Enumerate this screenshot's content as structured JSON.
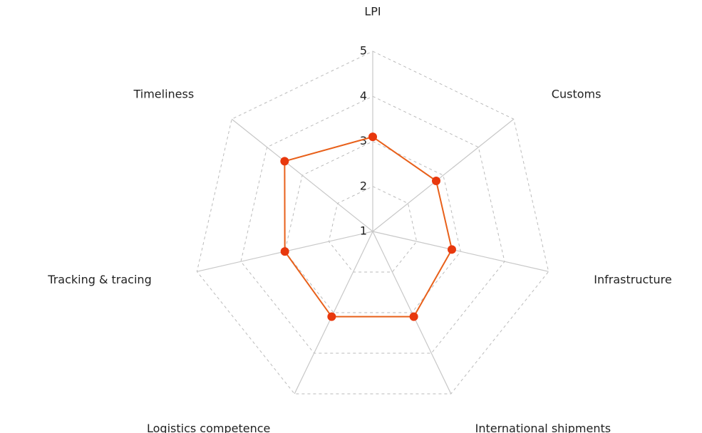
{
  "chart_data": {
    "type": "radar",
    "categories": [
      "LPI",
      "Customs",
      "Infrastructure",
      "International shipments",
      "Logistics competence",
      "Tracking & tracing",
      "Timeliness"
    ],
    "values": [
      3.1,
      2.8,
      2.8,
      3.1,
      3.1,
      3.0,
      3.5
    ],
    "color": "#e8380d",
    "line_color": "#e8601a",
    "ylim": [
      1,
      5
    ],
    "yticks": [
      1,
      2,
      3,
      4,
      5
    ],
    "grid": true
  }
}
